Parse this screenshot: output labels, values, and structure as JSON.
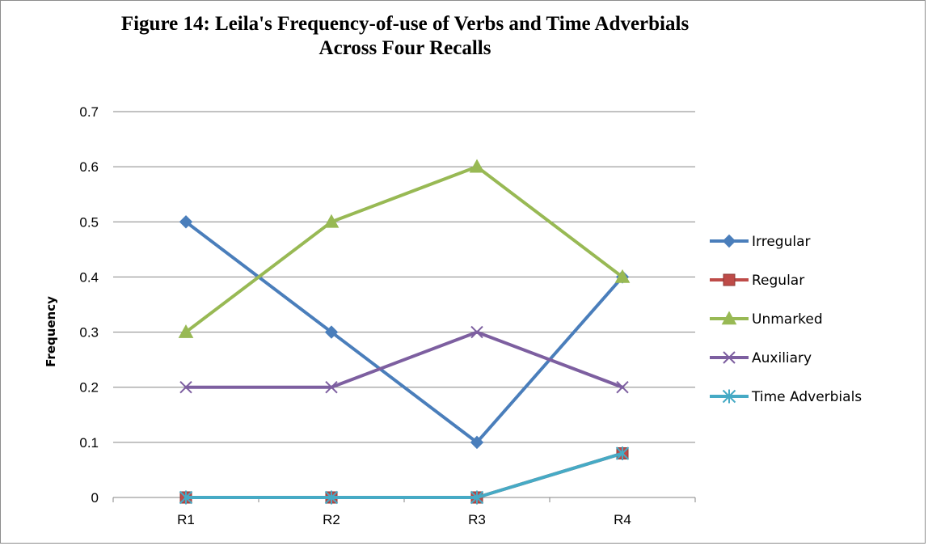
{
  "chart_data": {
    "type": "line",
    "title_lines": [
      "Figure 14: Leila's Frequency-of-use of Verbs and Time Adverbials",
      "Across Four Recalls"
    ],
    "xlabel": "",
    "ylabel": "Frequency",
    "categories": [
      "R1",
      "R2",
      "R3",
      "R4"
    ],
    "ylim": [
      0,
      0.7
    ],
    "yticks": [
      "0",
      "0.1",
      "0.2",
      "0.3",
      "0.4",
      "0.5",
      "0.6",
      "0.7"
    ],
    "grid": "horizontal",
    "legend_position": "right",
    "series": [
      {
        "name": "Irregular",
        "values": [
          0.5,
          0.3,
          0.1,
          0.4
        ],
        "color": "#4a7ebb",
        "marker": "diamond"
      },
      {
        "name": "Regular",
        "values": [
          0,
          0,
          0,
          0.08
        ],
        "color": "#be4b48",
        "marker": "square"
      },
      {
        "name": "Unmarked",
        "values": [
          0.3,
          0.5,
          0.6,
          0.4
        ],
        "color": "#98b954",
        "marker": "triangle"
      },
      {
        "name": "Auxiliary",
        "values": [
          0.2,
          0.2,
          0.3,
          0.2
        ],
        "color": "#7d5fa0",
        "marker": "x"
      },
      {
        "name": "Time Adverbials",
        "values": [
          0,
          0,
          0,
          0.08
        ],
        "color": "#46aac5",
        "marker": "star"
      }
    ]
  }
}
